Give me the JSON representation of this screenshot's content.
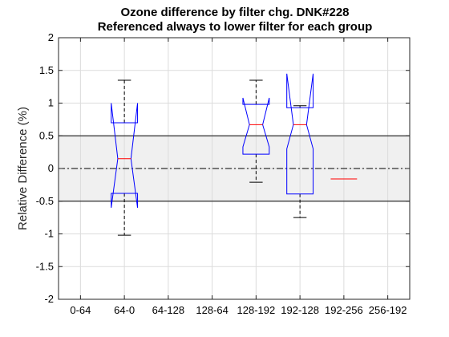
{
  "chart_data": {
    "type": "box",
    "title_line1": "Ozone difference by filter chg. DNK#228",
    "title_line2": "Referenced always to lower filter for each group",
    "xlabel": "",
    "ylabel": "Relative Difference (%)",
    "categories": [
      "0-64",
      "64-0",
      "64-128",
      "128-64",
      "128-192",
      "192-128",
      "192-256",
      "256-192"
    ],
    "ylim": [
      -2,
      2
    ],
    "yticks": [
      -2,
      -1.5,
      -1,
      -0.5,
      0,
      0.5,
      1,
      1.5,
      2
    ],
    "ytick_labels": [
      "-2",
      "-1.5",
      "-1",
      "-0.5",
      "0",
      "0.5",
      "1",
      "1.5",
      "2"
    ],
    "grid": true,
    "reference_band": {
      "low": -0.5,
      "high": 0.5,
      "fill": "#f0f0f0"
    },
    "reference_line": 0,
    "box_color": "#0000ff",
    "median_color": "#ff0000",
    "whisker_color": "#000000",
    "boxes": [
      {
        "category": "64-0",
        "q1": -0.38,
        "median": 0.15,
        "q3": 0.7,
        "notch_low": -0.6,
        "notch_high": 1.0,
        "whisker_low": -1.02,
        "whisker_high": 1.35
      },
      {
        "category": "128-192",
        "q1": 0.22,
        "median": 0.67,
        "q3": 0.98,
        "notch_low": 0.33,
        "notch_high": 1.08,
        "whisker_low": -0.21,
        "whisker_high": 1.35
      },
      {
        "category": "192-128",
        "q1": -0.39,
        "median": 0.67,
        "q3": 0.93,
        "notch_low": 0.3,
        "notch_high": 1.45,
        "whisker_low": -0.75,
        "whisker_high": 0.96
      },
      {
        "category": "192-256",
        "q1": -0.16,
        "median": -0.16,
        "q3": -0.16,
        "notch_low": -0.16,
        "notch_high": -0.16,
        "whisker_low": -0.16,
        "whisker_high": -0.16
      }
    ]
  }
}
